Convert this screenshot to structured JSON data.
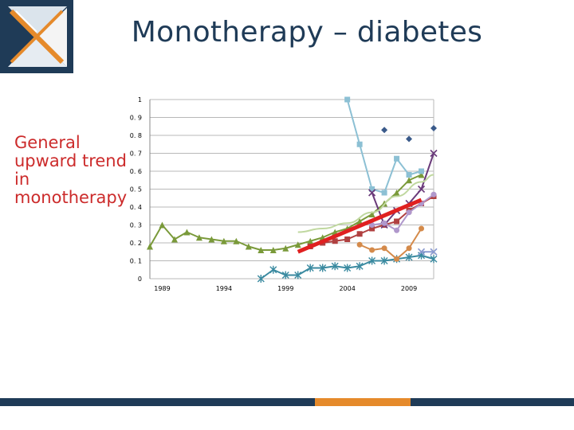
{
  "slide": {
    "title": "Monotherapy – diabetes",
    "side_note": "General upward trend in monotherapy"
  },
  "colors": {
    "title": "#1f3b57",
    "note": "#cc2b2b",
    "bottom_bar": [
      "#1f3b57",
      "#e58a2b",
      "#1f3b57"
    ]
  },
  "chart_data": {
    "type": "line",
    "title": "",
    "xlabel": "",
    "ylabel": "",
    "xlim": [
      1988,
      2011
    ],
    "ylim": [
      0,
      1
    ],
    "grid": true,
    "x_ticks": [
      1989,
      1994,
      1999,
      2004,
      2009
    ],
    "y_ticks": [
      0,
      0.1,
      0.2,
      0.3,
      0.4,
      0.5,
      0.6,
      0.7,
      0.8,
      0.9,
      1
    ],
    "x_tick_labels": [
      "1989",
      "1994",
      "1999",
      "2004",
      "2009"
    ],
    "y_tick_labels": [
      "0",
      "0. 1",
      "0. 2",
      "0. 3",
      "0. 4",
      "0. 5",
      "0. 6",
      "0. 7",
      "0. 8",
      "0. 9",
      "1"
    ],
    "series": [
      {
        "name": "series-olive-triangle",
        "color": "#7a9a3a",
        "marker": "triangle",
        "x": [
          1988,
          1989,
          1990,
          1991,
          1992,
          1993,
          1994,
          1995,
          1996,
          1997,
          1998,
          1999,
          2000,
          2001,
          2002,
          2003,
          2004,
          2005,
          2006,
          2007,
          2008,
          2009,
          2010
        ],
        "y": [
          0.18,
          0.3,
          0.22,
          0.26,
          0.23,
          0.22,
          0.21,
          0.21,
          0.18,
          0.16,
          0.16,
          0.17,
          0.19,
          0.21,
          0.23,
          0.26,
          0.28,
          0.32,
          0.36,
          0.42,
          0.48,
          0.55,
          0.58
        ]
      },
      {
        "name": "series-teal-star",
        "color": "#3a8aa0",
        "marker": "star",
        "x": [
          1997,
          1998,
          1999,
          2000,
          2001,
          2002,
          2003,
          2004,
          2005,
          2006,
          2007,
          2008,
          2009,
          2010,
          2011
        ],
        "y": [
          0.0,
          0.05,
          0.02,
          0.02,
          0.06,
          0.06,
          0.07,
          0.06,
          0.07,
          0.1,
          0.1,
          0.11,
          0.12,
          0.13,
          0.11
        ]
      },
      {
        "name": "series-lightblue-square",
        "color": "#8cc0d4",
        "marker": "square",
        "x": [
          2004,
          2005,
          2006,
          2007,
          2008,
          2009,
          2010
        ],
        "y": [
          1.0,
          0.75,
          0.5,
          0.48,
          0.67,
          0.58,
          0.6
        ]
      },
      {
        "name": "series-darkred-square",
        "color": "#b04040",
        "marker": "square",
        "x": [
          2001,
          2002,
          2003,
          2004,
          2005,
          2006,
          2007,
          2008,
          2009,
          2010,
          2011
        ],
        "y": [
          0.18,
          0.2,
          0.21,
          0.22,
          0.25,
          0.28,
          0.3,
          0.32,
          0.38,
          0.42,
          0.46
        ]
      },
      {
        "name": "series-orange-circle",
        "color": "#d48a4a",
        "marker": "circle",
        "x": [
          2005,
          2006,
          2007,
          2008,
          2009,
          2010
        ],
        "y": [
          0.19,
          0.16,
          0.17,
          0.11,
          0.17,
          0.28
        ]
      },
      {
        "name": "series-purple-x",
        "color": "#6a3a7a",
        "marker": "x",
        "x": [
          2006,
          2007,
          2008,
          2009,
          2010,
          2011
        ],
        "y": [
          0.48,
          0.3,
          0.38,
          0.42,
          0.5,
          0.7
        ]
      },
      {
        "name": "series-lavender-circle",
        "color": "#b098cc",
        "marker": "circle",
        "x": [
          2006,
          2007,
          2008,
          2009,
          2010,
          2011
        ],
        "y": [
          0.3,
          0.31,
          0.27,
          0.37,
          0.42,
          0.47
        ]
      },
      {
        "name": "series-navy-diamond",
        "color": "#3a5a8a",
        "marker": "diamond",
        "line": false,
        "x": [
          2007,
          2009,
          2011
        ],
        "y": [
          0.83,
          0.78,
          0.84
        ]
      },
      {
        "name": "series-periwinkle-x",
        "color": "#8a9ad0",
        "marker": "x",
        "x": [
          2010,
          2011
        ],
        "y": [
          0.15,
          0.15
        ]
      },
      {
        "name": "trend-curve-light",
        "color": "#c0d8a0",
        "marker": "none",
        "smooth": true,
        "x": [
          2000,
          2002,
          2004,
          2006,
          2008,
          2010,
          2011
        ],
        "y": [
          0.26,
          0.28,
          0.31,
          0.37,
          0.46,
          0.54,
          0.58
        ]
      },
      {
        "name": "trend-line-red",
        "color": "#e02020",
        "marker": "none",
        "width": 5,
        "x": [
          2000,
          2010
        ],
        "y": [
          0.15,
          0.44
        ]
      }
    ]
  }
}
